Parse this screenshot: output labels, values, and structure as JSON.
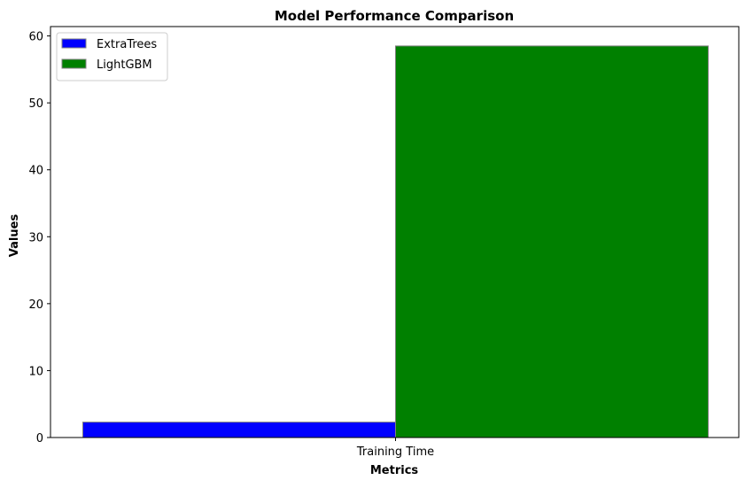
{
  "chart_data": {
    "type": "bar",
    "title": "Model Performance Comparison",
    "xlabel": "Metrics",
    "ylabel": "Values",
    "categories": [
      "Training Time"
    ],
    "series": [
      {
        "name": "ExtraTrees",
        "values": [
          2.3
        ],
        "color": "#0000ff"
      },
      {
        "name": "LightGBM",
        "values": [
          58.5
        ],
        "color": "#008000"
      }
    ],
    "ylim": [
      0,
      61.4
    ],
    "yticks": [
      0,
      10,
      20,
      30,
      40,
      50,
      60
    ],
    "grid": false,
    "legend_position": "top-left"
  }
}
